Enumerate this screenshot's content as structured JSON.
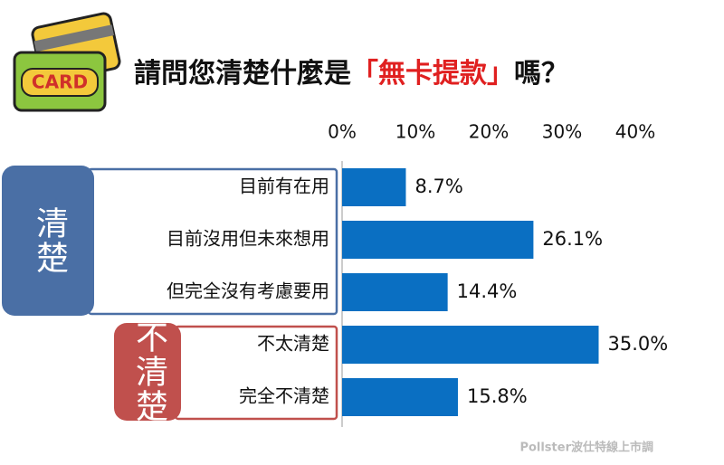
{
  "chart_data": {
    "type": "bar",
    "title_segments": [
      {
        "text": "請問您清楚什麼是",
        "color": "#111111"
      },
      {
        "text": "「無卡提款」",
        "color": "#e02020"
      },
      {
        "text": "嗎？",
        "color": "#111111"
      }
    ],
    "icon_text": "CARD",
    "categories": [
      "目前有在用",
      "目前沒用但未來想用",
      "但完全沒有考慮要用",
      "不太清楚",
      "完全不清楚"
    ],
    "values": [
      8.7,
      26.1,
      14.4,
      35.0,
      15.8
    ],
    "value_labels": [
      "8.7%",
      "26.1%",
      "14.4%",
      "35.0%",
      "15.8%"
    ],
    "color": "#0a6fc2",
    "groups": [
      {
        "label": "清楚",
        "start": 0,
        "end": 2,
        "color": "#4a6fa5"
      },
      {
        "label": "不清楚",
        "start": 3,
        "end": 4,
        "color": "#c0504d"
      }
    ],
    "xlim": [
      0,
      40
    ],
    "xticks": [
      {
        "value": 0,
        "label": "0%"
      },
      {
        "value": 10,
        "label": "10%"
      },
      {
        "value": 20,
        "label": "20%"
      },
      {
        "value": 30,
        "label": "30%"
      },
      {
        "value": 40,
        "label": "40%"
      }
    ],
    "grid": false,
    "source": "Pollster波仕特線上市調"
  }
}
